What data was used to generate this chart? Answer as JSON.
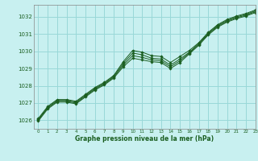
{
  "title": "Graphe pression niveau de la mer (hPa)",
  "bg_color": "#c8f0f0",
  "grid_color": "#99d8d8",
  "line_color": "#1a5e20",
  "marker_color": "#1a5e20",
  "xlim": [
    -0.5,
    23
  ],
  "ylim": [
    1025.5,
    1032.7
  ],
  "yticks": [
    1026,
    1027,
    1028,
    1029,
    1030,
    1031,
    1032
  ],
  "xticks": [
    0,
    1,
    2,
    3,
    4,
    5,
    6,
    7,
    8,
    9,
    10,
    11,
    12,
    13,
    14,
    15,
    16,
    17,
    18,
    19,
    20,
    21,
    22,
    23
  ],
  "series": [
    [
      1026.1,
      1026.8,
      1027.2,
      1027.2,
      1027.1,
      1027.5,
      1027.9,
      1028.2,
      1028.6,
      1029.4,
      1030.05,
      1029.95,
      1029.75,
      1029.7,
      1029.35,
      1029.7,
      1030.05,
      1030.5,
      1031.1,
      1031.55,
      1031.85,
      1032.05,
      1032.2,
      1032.4
    ],
    [
      1026.05,
      1026.75,
      1027.15,
      1027.15,
      1027.05,
      1027.45,
      1027.85,
      1028.15,
      1028.55,
      1029.3,
      1029.9,
      1029.8,
      1029.6,
      1029.55,
      1029.2,
      1029.55,
      1029.95,
      1030.45,
      1031.05,
      1031.5,
      1031.8,
      1032.0,
      1032.15,
      1032.35
    ],
    [
      1026.0,
      1026.7,
      1027.1,
      1027.1,
      1027.0,
      1027.4,
      1027.8,
      1028.1,
      1028.5,
      1029.2,
      1029.75,
      1029.65,
      1029.5,
      1029.45,
      1029.1,
      1029.45,
      1029.9,
      1030.4,
      1031.0,
      1031.45,
      1031.75,
      1031.95,
      1032.1,
      1032.3
    ],
    [
      1025.95,
      1026.65,
      1027.05,
      1027.05,
      1026.95,
      1027.35,
      1027.75,
      1028.05,
      1028.45,
      1029.1,
      1029.6,
      1029.5,
      1029.4,
      1029.35,
      1029.0,
      1029.35,
      1029.85,
      1030.35,
      1030.95,
      1031.4,
      1031.7,
      1031.9,
      1032.05,
      1032.25
    ]
  ]
}
